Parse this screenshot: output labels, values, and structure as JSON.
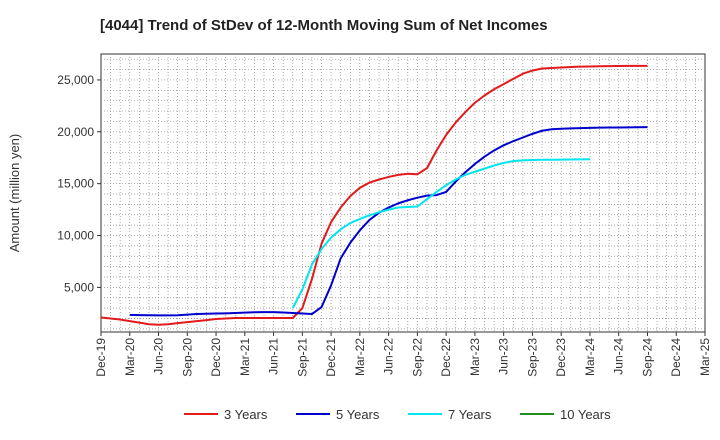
{
  "chart_data": {
    "type": "line",
    "title": "[4044]  Trend of StDev of 12-Month Moving Sum of Net Incomes",
    "ylabel": "Amount (million yen)",
    "xlabel": "",
    "ylim": [
      700,
      27500
    ],
    "y_ticks": [
      5000,
      10000,
      15000,
      20000,
      25000
    ],
    "y_tick_labels": [
      "5,000",
      "10,000",
      "15,000",
      "20,000",
      "25,000"
    ],
    "x_tick_labels": [
      "Dec-19",
      "Mar-20",
      "Jun-20",
      "Sep-20",
      "Dec-20",
      "Mar-21",
      "Jun-21",
      "Sep-21",
      "Dec-21",
      "Mar-22",
      "Jun-22",
      "Sep-22",
      "Dec-22",
      "Mar-23",
      "Jun-23",
      "Sep-23",
      "Dec-23",
      "Mar-24",
      "Jun-24",
      "Sep-24",
      "Dec-24",
      "Mar-25"
    ],
    "grid": true,
    "legend_position": "bottom",
    "series": [
      {
        "name": "3 Years",
        "color": "#e31a1c",
        "start_index": 0,
        "values": [
          2100,
          2000,
          1900,
          1750,
          1600,
          1450,
          1400,
          1450,
          1550,
          1650,
          1750,
          1850,
          1950,
          2000,
          2050,
          2050,
          2050,
          2050,
          2050,
          2050,
          2050,
          3000,
          5800,
          9200,
          11300,
          12700,
          13800,
          14600,
          15100,
          15400,
          15650,
          15850,
          15950,
          15900,
          16500,
          18200,
          19700,
          20900,
          21900,
          22800,
          23500,
          24100,
          24600,
          25100,
          25600,
          25900,
          26100,
          26150,
          26200,
          26250,
          26280,
          26300,
          26320,
          26330,
          26340,
          26350,
          26350,
          26360
        ]
      },
      {
        "name": "5 Years",
        "color": "#0000cd",
        "start_index": 3,
        "values": [
          2350,
          2330,
          2310,
          2300,
          2300,
          2320,
          2380,
          2430,
          2460,
          2480,
          2500,
          2530,
          2570,
          2600,
          2620,
          2620,
          2580,
          2530,
          2480,
          2430,
          3100,
          5200,
          7800,
          9300,
          10500,
          11500,
          12200,
          12700,
          13100,
          13400,
          13650,
          13850,
          13900,
          14200,
          15200,
          16100,
          16900,
          17600,
          18200,
          18700,
          19100,
          19450,
          19800,
          20100,
          20250,
          20300,
          20330,
          20350,
          20380,
          20400,
          20410,
          20420,
          20430,
          20440,
          20450
        ]
      },
      {
        "name": "7 Years",
        "color": "#00e5ee",
        "start_index": 20,
        "values": [
          3000,
          4800,
          7200,
          8700,
          9800,
          10600,
          11200,
          11600,
          11950,
          12250,
          12500,
          12700,
          12750,
          12800,
          13500,
          14200,
          14850,
          15400,
          15850,
          16150,
          16450,
          16750,
          17000,
          17180,
          17250,
          17280,
          17300,
          17310,
          17320,
          17330,
          17340,
          17350
        ]
      },
      {
        "name": "10 Years",
        "color": "#228b22",
        "start_index": 0,
        "values": []
      }
    ]
  }
}
